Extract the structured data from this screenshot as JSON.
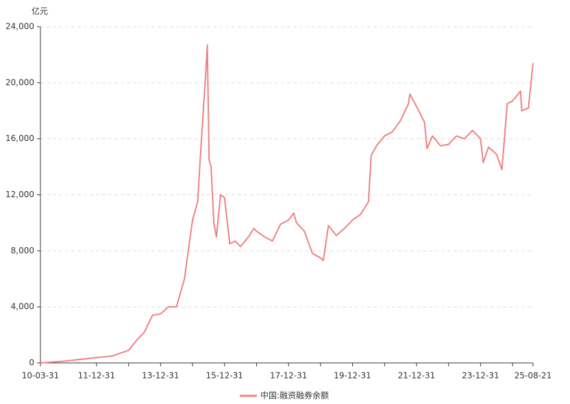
{
  "chart_data": {
    "type": "line",
    "y_unit": "亿元",
    "x": [
      "10-03-31",
      "10-12-31",
      "11-06-30",
      "11-12-31",
      "12-06-30",
      "12-12-31",
      "13-03-31",
      "13-06-30",
      "13-09-30",
      "13-12-31",
      "14-03-31",
      "14-06-30",
      "14-09-30",
      "14-12-31",
      "15-02-28",
      "15-03-31",
      "15-05-31",
      "15-06-18",
      "15-07-08",
      "15-07-31",
      "15-08-31",
      "15-09-30",
      "15-11-15",
      "15-12-31",
      "16-02-29",
      "16-04-30",
      "16-06-30",
      "16-09-30",
      "16-11-30",
      "16-12-31",
      "17-03-31",
      "17-06-30",
      "17-09-30",
      "17-12-31",
      "18-02-28",
      "18-03-31",
      "18-06-30",
      "18-09-30",
      "18-12-31",
      "19-01-31",
      "19-03-31",
      "19-06-30",
      "19-09-30",
      "19-12-31",
      "20-03-31",
      "20-06-30",
      "20-07-31",
      "20-09-30",
      "20-12-31",
      "21-03-31",
      "21-06-30",
      "21-09-30",
      "21-10-15",
      "21-12-31",
      "22-03-31",
      "22-04-30",
      "22-06-30",
      "22-09-30",
      "22-12-31",
      "23-03-31",
      "23-06-30",
      "23-09-30",
      "23-12-31",
      "24-01-31",
      "24-03-31",
      "24-06-30",
      "24-08-31",
      "24-10-31",
      "24-12-31",
      "25-03-31",
      "25-04-15",
      "25-06-30",
      "25-08-21"
    ],
    "series": [
      {
        "name": "中国:融资融券余额",
        "color": "#f08080",
        "values": [
          0,
          130,
          250,
          380,
          500,
          900,
          1600,
          2200,
          3400,
          3500,
          4000,
          4000,
          6000,
          10200,
          11500,
          14800,
          20700,
          22700,
          14500,
          14000,
          10000,
          9000,
          12000,
          11800,
          8500,
          8700,
          8300,
          9000,
          9600,
          9400,
          9000,
          8700,
          9900,
          10200,
          10700,
          10000,
          9400,
          7800,
          7500,
          7300,
          9800,
          9100,
          9600,
          10200,
          10600,
          11500,
          14800,
          15500,
          16200,
          16500,
          17300,
          18500,
          19200,
          18300,
          17200,
          15300,
          16200,
          15500,
          15600,
          16200,
          16000,
          16600,
          16000,
          14300,
          15400,
          14900,
          13800,
          18500,
          18700,
          19400,
          18000,
          18200,
          21400
        ]
      }
    ],
    "xlim": [
      "10-03-31",
      "25-08-21"
    ],
    "xticks": [
      "10-03-31",
      "11-12-31",
      "13-12-31",
      "15-12-31",
      "17-12-31",
      "19-12-31",
      "21-12-31",
      "23-12-31",
      "25-08-21"
    ],
    "xminor_ticks": [
      "12-12-31",
      "14-12-31",
      "16-12-31",
      "18-12-31",
      "20-12-31",
      "22-12-31",
      "24-12-31"
    ],
    "ylim": [
      0,
      24000
    ],
    "yticks": [
      0,
      {
        "value": 4000,
        "label": "4,000"
      },
      {
        "value": 8000,
        "label": "8,000"
      },
      {
        "value": 12000,
        "label": "12,000"
      },
      {
        "value": 16000,
        "label": "16,000"
      },
      {
        "value": 20000,
        "label": "20,000"
      },
      {
        "value": 24000,
        "label": "24,000"
      }
    ],
    "grid": true
  }
}
